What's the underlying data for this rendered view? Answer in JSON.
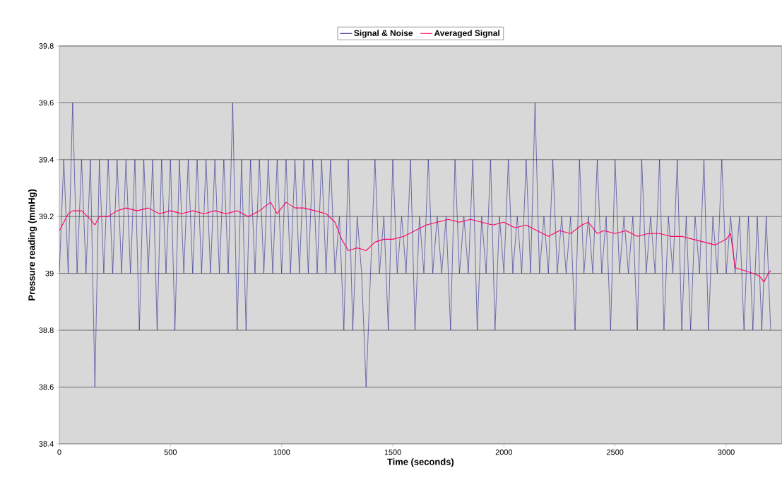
{
  "chart_data": {
    "type": "line",
    "xlabel": "Time (seconds)",
    "ylabel": "Pressure reading (mmHg)",
    "xlim": [
      0,
      3250
    ],
    "ylim": [
      38.4,
      39.8
    ],
    "xticks": [
      0,
      500,
      1000,
      1500,
      2000,
      2500,
      3000
    ],
    "yticks": [
      38.4,
      38.6,
      38.8,
      39,
      39.2,
      39.4,
      39.6,
      39.8
    ],
    "grid": "y",
    "legend": "top",
    "marker": "none",
    "line_style": "solid",
    "series": [
      {
        "name": "Signal & Noise",
        "color": "#23238e",
        "x": [
          0,
          20,
          40,
          60,
          80,
          100,
          120,
          140,
          160,
          180,
          200,
          220,
          240,
          260,
          280,
          300,
          320,
          340,
          360,
          380,
          400,
          420,
          440,
          460,
          480,
          500,
          520,
          540,
          560,
          580,
          600,
          620,
          640,
          660,
          680,
          700,
          720,
          740,
          760,
          780,
          800,
          820,
          840,
          860,
          880,
          900,
          920,
          940,
          960,
          980,
          1000,
          1020,
          1040,
          1060,
          1080,
          1100,
          1120,
          1140,
          1160,
          1180,
          1200,
          1220,
          1240,
          1260,
          1280,
          1300,
          1320,
          1340,
          1360,
          1380,
          1400,
          1420,
          1440,
          1460,
          1480,
          1500,
          1520,
          1540,
          1560,
          1580,
          1600,
          1620,
          1640,
          1660,
          1680,
          1700,
          1720,
          1740,
          1760,
          1780,
          1800,
          1820,
          1840,
          1860,
          1880,
          1900,
          1920,
          1940,
          1960,
          1980,
          2000,
          2020,
          2040,
          2060,
          2080,
          2100,
          2120,
          2140,
          2160,
          2180,
          2200,
          2220,
          2240,
          2260,
          2280,
          2300,
          2320,
          2340,
          2360,
          2380,
          2400,
          2420,
          2440,
          2460,
          2480,
          2500,
          2520,
          2540,
          2560,
          2580,
          2600,
          2620,
          2640,
          2660,
          2680,
          2700,
          2720,
          2740,
          2760,
          2780,
          2800,
          2820,
          2840,
          2860,
          2880,
          2900,
          2920,
          2940,
          2960,
          2980,
          3000,
          3020,
          3040,
          3060,
          3080,
          3100,
          3120,
          3140,
          3160,
          3180,
          3200
        ],
        "values": [
          39.0,
          39.4,
          39.0,
          39.6,
          39.0,
          39.4,
          39.0,
          39.4,
          38.6,
          39.4,
          39.0,
          39.4,
          39.0,
          39.4,
          39.0,
          39.4,
          39.0,
          39.4,
          38.8,
          39.4,
          39.0,
          39.4,
          38.8,
          39.4,
          39.0,
          39.4,
          38.8,
          39.4,
          39.0,
          39.4,
          39.0,
          39.4,
          39.0,
          39.4,
          39.0,
          39.4,
          39.0,
          39.4,
          39.0,
          39.6,
          38.8,
          39.4,
          38.8,
          39.4,
          39.0,
          39.4,
          39.0,
          39.4,
          39.0,
          39.4,
          39.0,
          39.4,
          39.0,
          39.4,
          39.0,
          39.4,
          39.0,
          39.4,
          39.0,
          39.4,
          39.0,
          39.4,
          39.0,
          39.2,
          38.8,
          39.4,
          38.8,
          39.2,
          39.0,
          38.6,
          39.0,
          39.4,
          39.0,
          39.2,
          38.8,
          39.4,
          39.0,
          39.2,
          39.0,
          39.4,
          38.8,
          39.2,
          39.0,
          39.4,
          39.0,
          39.2,
          39.0,
          39.2,
          38.8,
          39.4,
          39.0,
          39.2,
          39.0,
          39.4,
          38.8,
          39.2,
          39.0,
          39.4,
          38.8,
          39.2,
          39.0,
          39.4,
          39.0,
          39.2,
          39.0,
          39.4,
          39.0,
          39.6,
          39.0,
          39.2,
          39.0,
          39.4,
          39.0,
          39.2,
          39.0,
          39.2,
          38.8,
          39.4,
          39.0,
          39.2,
          39.0,
          39.4,
          39.0,
          39.2,
          38.8,
          39.4,
          39.0,
          39.2,
          39.0,
          39.2,
          38.8,
          39.4,
          39.0,
          39.2,
          39.0,
          39.4,
          38.8,
          39.2,
          39.0,
          39.4,
          38.8,
          39.2,
          38.8,
          39.2,
          39.0,
          39.4,
          38.8,
          39.2,
          39.0,
          39.4,
          39.0,
          39.2,
          39.0,
          39.2,
          38.8,
          39.2,
          38.8,
          39.2,
          38.8,
          39.2,
          38.8
        ]
      },
      {
        "name": "Averaged Signal",
        "color": "#ff0066",
        "x": [
          0,
          20,
          40,
          60,
          100,
          140,
          160,
          180,
          220,
          260,
          300,
          350,
          400,
          450,
          500,
          550,
          600,
          650,
          700,
          750,
          800,
          850,
          900,
          950,
          980,
          1020,
          1060,
          1100,
          1150,
          1200,
          1240,
          1270,
          1300,
          1340,
          1380,
          1420,
          1460,
          1500,
          1550,
          1600,
          1650,
          1700,
          1750,
          1800,
          1850,
          1900,
          1950,
          2000,
          2050,
          2100,
          2150,
          2200,
          2250,
          2300,
          2350,
          2380,
          2420,
          2450,
          2500,
          2550,
          2600,
          2650,
          2700,
          2750,
          2800,
          2850,
          2900,
          2950,
          3000,
          3020,
          3040,
          3080,
          3120,
          3150,
          3170,
          3190,
          3200
        ],
        "values": [
          39.15,
          39.18,
          39.21,
          39.22,
          39.22,
          39.19,
          39.17,
          39.2,
          39.2,
          39.22,
          39.23,
          39.22,
          39.23,
          39.21,
          39.22,
          39.21,
          39.22,
          39.21,
          39.22,
          39.21,
          39.22,
          39.2,
          39.22,
          39.25,
          39.21,
          39.25,
          39.23,
          39.23,
          39.22,
          39.21,
          39.18,
          39.12,
          39.08,
          39.09,
          39.08,
          39.11,
          39.12,
          39.12,
          39.13,
          39.15,
          39.17,
          39.18,
          39.19,
          39.18,
          39.19,
          39.18,
          39.17,
          39.18,
          39.16,
          39.17,
          39.15,
          39.13,
          39.15,
          39.14,
          39.17,
          39.18,
          39.14,
          39.15,
          39.14,
          39.15,
          39.13,
          39.14,
          39.14,
          39.13,
          39.13,
          39.12,
          39.11,
          39.1,
          39.12,
          39.14,
          39.02,
          39.01,
          39.0,
          38.99,
          38.97,
          39.0,
          39.01
        ]
      }
    ]
  }
}
